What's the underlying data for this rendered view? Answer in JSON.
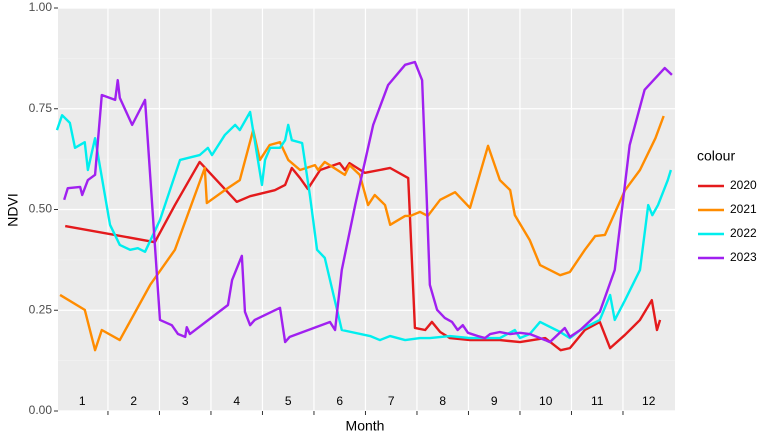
{
  "chart_data": {
    "type": "line",
    "xlabel": "Month",
    "ylabel": "NDVI",
    "legend_title": "colour",
    "legend_position": "right",
    "grid": true,
    "xlim": [
      1.03,
      13.01
    ],
    "xticks": [
      2,
      3,
      4,
      5,
      6,
      7,
      8,
      9,
      10,
      11,
      12
    ],
    "month_labels": [
      1,
      2,
      3,
      4,
      5,
      6,
      7,
      8,
      9,
      10,
      11,
      12
    ],
    "ylim": [
      0,
      1
    ],
    "yticks": [
      {
        "value": 0,
        "label": "0.00"
      },
      {
        "value": 0.25,
        "label": "0.25"
      },
      {
        "value": 0.5,
        "label": "0.50"
      },
      {
        "value": 0.75,
        "label": "0.75"
      },
      {
        "value": 1,
        "label": "1.00"
      }
    ],
    "series": [
      {
        "name": "2020",
        "color": "#e41a1c",
        "x": [
          1.17,
          2.91,
          3.3,
          3.78,
          4.5,
          4.76,
          5.24,
          5.44,
          5.57,
          5.73,
          5.88,
          6.12,
          6.5,
          6.6,
          6.69,
          6.99,
          7.48,
          7.83,
          7.96,
          8.16,
          8.29,
          8.45,
          8.64,
          9.03,
          9.61,
          10.0,
          10.49,
          10.79,
          10.97,
          11.26,
          11.55,
          11.75,
          12.04,
          12.33,
          12.56,
          12.66,
          12.72
        ],
        "values": [
          0.459,
          0.419,
          0.511,
          0.618,
          0.519,
          0.533,
          0.548,
          0.561,
          0.603,
          0.578,
          0.551,
          0.598,
          0.615,
          0.598,
          0.615,
          0.591,
          0.603,
          0.578,
          0.206,
          0.201,
          0.221,
          0.196,
          0.181,
          0.176,
          0.176,
          0.171,
          0.181,
          0.151,
          0.156,
          0.201,
          0.221,
          0.156,
          0.189,
          0.226,
          0.275,
          0.201,
          0.226
        ]
      },
      {
        "name": "2021",
        "color": "#ff8c00",
        "x": [
          1.07,
          1.55,
          1.75,
          1.88,
          2.23,
          2.82,
          3.3,
          3.88,
          3.92,
          4.27,
          4.56,
          4.82,
          4.95,
          5.14,
          5.34,
          5.5,
          5.73,
          6.02,
          6.08,
          6.21,
          6.6,
          6.69,
          6.89,
          7.05,
          7.18,
          7.38,
          7.48,
          7.77,
          7.87,
          8.06,
          8.21,
          8.45,
          8.74,
          9.03,
          9.38,
          9.61,
          9.81,
          9.9,
          10.19,
          10.39,
          10.78,
          10.97,
          11.26,
          11.46,
          11.65,
          12.04,
          12.33,
          12.63,
          12.79
        ],
        "values": [
          0.288,
          0.251,
          0.151,
          0.201,
          0.176,
          0.313,
          0.4,
          0.603,
          0.516,
          0.548,
          0.573,
          0.697,
          0.623,
          0.66,
          0.667,
          0.623,
          0.598,
          0.61,
          0.598,
          0.618,
          0.586,
          0.61,
          0.586,
          0.511,
          0.536,
          0.511,
          0.462,
          0.484,
          0.484,
          0.494,
          0.484,
          0.524,
          0.543,
          0.504,
          0.658,
          0.573,
          0.548,
          0.486,
          0.424,
          0.362,
          0.337,
          0.345,
          0.4,
          0.434,
          0.437,
          0.548,
          0.598,
          0.677,
          0.732
        ]
      },
      {
        "name": "2022",
        "color": "#00eeee",
        "x": [
          1.01,
          1.11,
          1.26,
          1.36,
          1.55,
          1.61,
          1.75,
          2.04,
          2.23,
          2.43,
          2.58,
          2.72,
          3.01,
          3.4,
          3.78,
          3.94,
          4.02,
          4.27,
          4.47,
          4.56,
          4.76,
          4.99,
          5.05,
          5.15,
          5.34,
          5.44,
          5.5,
          5.57,
          5.77,
          5.92,
          6.06,
          6.21,
          6.54,
          7.09,
          7.28,
          7.48,
          7.77,
          8.06,
          8.25,
          8.64,
          9.03,
          9.61,
          9.9,
          10.0,
          10.19,
          10.39,
          10.78,
          10.97,
          11.17,
          11.55,
          11.75,
          11.84,
          12.04,
          12.33,
          12.49,
          12.57,
          12.68,
          12.87,
          12.93
        ],
        "values": [
          0.697,
          0.734,
          0.715,
          0.653,
          0.667,
          0.598,
          0.677,
          0.462,
          0.412,
          0.4,
          0.404,
          0.395,
          0.474,
          0.623,
          0.635,
          0.653,
          0.635,
          0.685,
          0.71,
          0.697,
          0.742,
          0.561,
          0.623,
          0.653,
          0.653,
          0.672,
          0.71,
          0.672,
          0.665,
          0.536,
          0.4,
          0.38,
          0.201,
          0.186,
          0.176,
          0.186,
          0.176,
          0.181,
          0.181,
          0.186,
          0.181,
          0.181,
          0.201,
          0.181,
          0.191,
          0.221,
          0.196,
          0.181,
          0.201,
          0.226,
          0.288,
          0.226,
          0.275,
          0.35,
          0.511,
          0.486,
          0.511,
          0.573,
          0.598
        ]
      },
      {
        "name": "2023",
        "color": "#a020f0",
        "x": [
          1.15,
          1.22,
          1.46,
          1.5,
          1.61,
          1.75,
          1.88,
          2.14,
          2.19,
          2.23,
          2.47,
          2.72,
          3.01,
          3.24,
          3.36,
          3.5,
          3.53,
          3.59,
          4.33,
          4.41,
          4.6,
          4.66,
          4.76,
          4.85,
          5.34,
          5.44,
          5.53,
          6.31,
          6.41,
          6.54,
          6.8,
          7.15,
          7.44,
          7.77,
          7.96,
          8.1,
          8.19,
          8.25,
          8.39,
          8.54,
          8.68,
          8.79,
          8.89,
          8.99,
          9.18,
          9.32,
          9.42,
          9.61,
          9.81,
          10.0,
          10.19,
          10.49,
          10.58,
          10.87,
          10.97,
          11.17,
          11.55,
          11.84,
          12.13,
          12.42,
          12.81,
          12.95
        ],
        "values": [
          0.524,
          0.553,
          0.556,
          0.536,
          0.573,
          0.586,
          0.784,
          0.772,
          0.821,
          0.777,
          0.71,
          0.772,
          0.226,
          0.213,
          0.191,
          0.184,
          0.208,
          0.191,
          0.263,
          0.325,
          0.385,
          0.246,
          0.213,
          0.226,
          0.256,
          0.171,
          0.184,
          0.221,
          0.201,
          0.35,
          0.511,
          0.71,
          0.809,
          0.859,
          0.866,
          0.821,
          0.524,
          0.313,
          0.251,
          0.231,
          0.221,
          0.201,
          0.213,
          0.194,
          0.186,
          0.181,
          0.191,
          0.196,
          0.191,
          0.194,
          0.191,
          0.176,
          0.171,
          0.206,
          0.184,
          0.201,
          0.246,
          0.35,
          0.66,
          0.797,
          0.851,
          0.834
        ]
      }
    ]
  }
}
